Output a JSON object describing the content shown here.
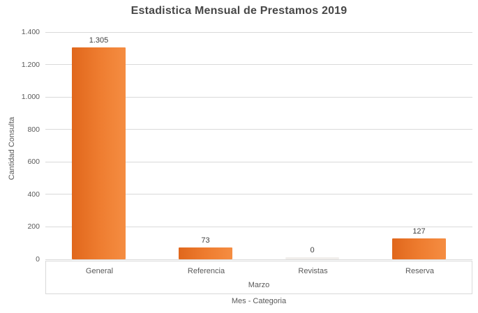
{
  "chart_data": {
    "type": "bar",
    "title": "Estadistica Mensual de Prestamos 2019",
    "categories": [
      "General",
      "Referencia",
      "Revistas",
      "Reserva"
    ],
    "values": [
      1305,
      73,
      0,
      127
    ],
    "value_labels": [
      "1.305",
      "73",
      "0",
      "127"
    ],
    "group_label": "Marzo",
    "xlabel": "Mes - Categoria",
    "ylabel": "Cantidad Consulta",
    "ylim": [
      0,
      1400
    ],
    "ytick_step": 200,
    "yticks": [
      {
        "value": 0,
        "label": "0"
      },
      {
        "value": 200,
        "label": "200"
      },
      {
        "value": 400,
        "label": "400"
      },
      {
        "value": 600,
        "label": "600"
      },
      {
        "value": 800,
        "label": "800"
      },
      {
        "value": 1000,
        "label": "1.000"
      },
      {
        "value": 1200,
        "label": "1.200"
      },
      {
        "value": 1400,
        "label": "1.400"
      }
    ],
    "grid": true,
    "legend": false,
    "colors": {
      "bar_gradient_start": "#e0671c",
      "bar_gradient_mid": "#ee7c2f",
      "bar_gradient_end": "#f58d42",
      "gridline": "#d9d9d9",
      "axis_text": "#595959",
      "value_label_text": "#404040",
      "title_text": "#474747"
    }
  }
}
